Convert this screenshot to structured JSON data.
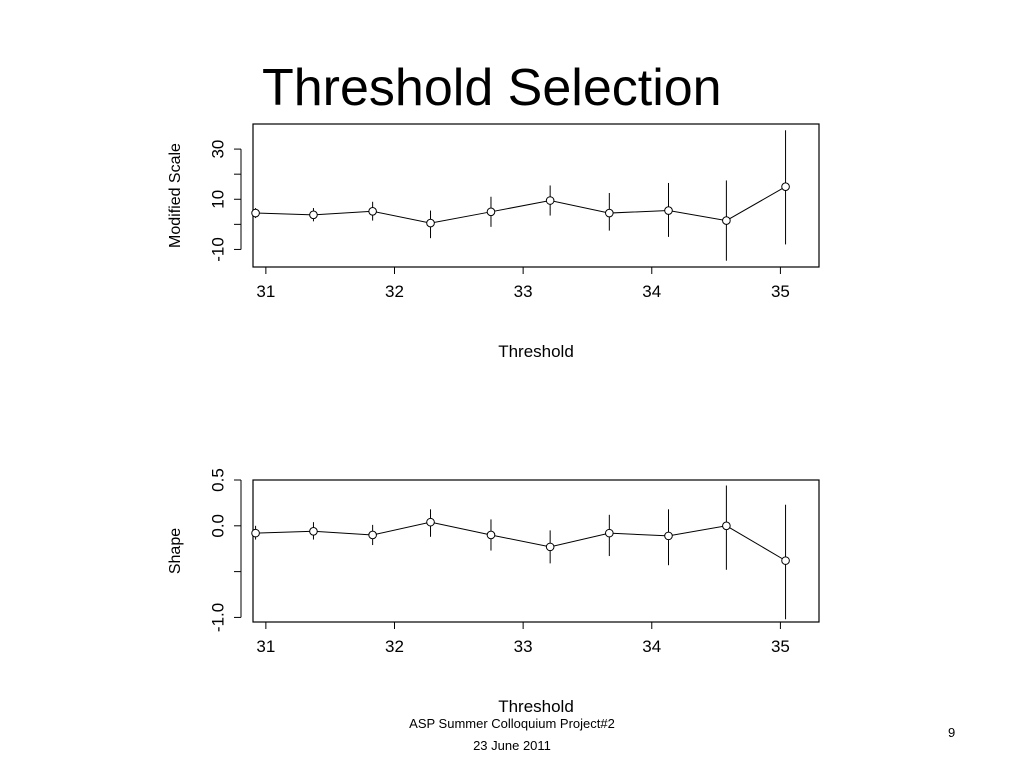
{
  "slide": {
    "title": "Threshold Selection",
    "footer_line1": "ASP Summer Colloquium Project#2",
    "footer_line2": "23 June 2011",
    "page_number": "9"
  },
  "chart_data": [
    {
      "type": "scatter",
      "xlabel": "Threshold",
      "ylabel": "Modified Scale",
      "x_ticks": [
        31,
        32,
        33,
        34,
        35
      ],
      "y_ticks": [
        -10,
        10,
        30
      ],
      "y_minor_ticks": [
        0,
        20
      ],
      "xlim": [
        30.9,
        35.3
      ],
      "ylim": [
        -17,
        40
      ],
      "connected": true,
      "error_bars": true,
      "x": [
        30.92,
        31.37,
        31.83,
        32.28,
        32.75,
        33.21,
        33.67,
        34.13,
        34.58,
        35.04
      ],
      "values": [
        4.5,
        3.8,
        5.2,
        0.5,
        5.0,
        9.5,
        4.5,
        5.5,
        1.5,
        15.0
      ],
      "lower": [
        2.5,
        1.2,
        1.5,
        -5.5,
        -1.0,
        3.5,
        -2.5,
        -5.0,
        -14.5,
        -8.0
      ],
      "upper": [
        6.5,
        6.5,
        9.0,
        5.5,
        11.0,
        15.5,
        12.5,
        16.5,
        17.5,
        37.5
      ]
    },
    {
      "type": "scatter",
      "xlabel": "Threshold",
      "ylabel": "Shape",
      "x_ticks": [
        31,
        32,
        33,
        34,
        35
      ],
      "y_ticks": [
        -1.0,
        0.0,
        0.5
      ],
      "y_tick_labels": [
        "-1.0",
        "0.0",
        "0.5"
      ],
      "y_minor_ticks": [
        -0.5
      ],
      "xlim": [
        30.9,
        35.3
      ],
      "ylim": [
        -1.05,
        0.5
      ],
      "connected": true,
      "error_bars": true,
      "x": [
        30.92,
        31.37,
        31.83,
        32.28,
        32.75,
        33.21,
        33.67,
        34.13,
        34.58,
        35.04
      ],
      "values": [
        -0.08,
        -0.06,
        -0.1,
        0.04,
        -0.1,
        -0.23,
        -0.08,
        -0.11,
        0.0,
        -0.38
      ],
      "lower": [
        -0.15,
        -0.15,
        -0.21,
        -0.12,
        -0.27,
        -0.41,
        -0.33,
        -0.43,
        -0.48,
        -1.02
      ],
      "upper": [
        0.0,
        0.04,
        0.01,
        0.18,
        0.07,
        -0.05,
        0.12,
        0.18,
        0.44,
        0.23
      ]
    }
  ]
}
